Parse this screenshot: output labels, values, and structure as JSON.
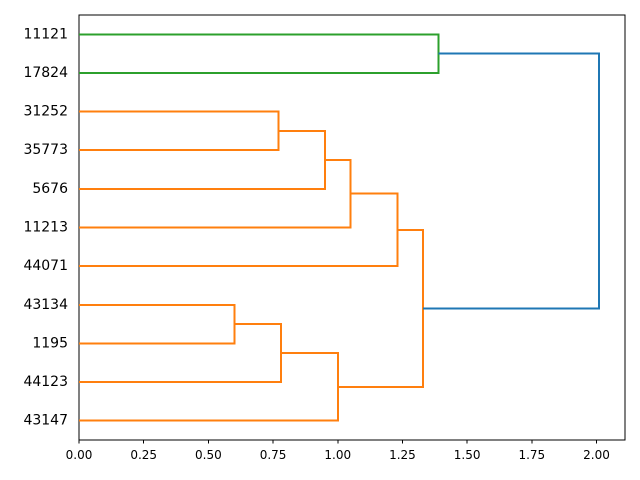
{
  "chart_data": {
    "type": "dendrogram",
    "orientation": "right",
    "title": "",
    "xlabel": "",
    "ylabel": "",
    "grid": false,
    "legend": "none",
    "leaves": [
      "11121",
      "17824",
      "31252",
      "35773",
      "5676",
      "11213",
      "44071",
      "43134",
      "1195",
      "44123",
      "43147"
    ],
    "links": [
      {
        "id": "n1",
        "children": [
          "31252",
          "35773"
        ],
        "distance": 0.77,
        "color": "orange"
      },
      {
        "id": "n2",
        "children": [
          "n1",
          "5676"
        ],
        "distance": 0.95,
        "color": "orange"
      },
      {
        "id": "n3",
        "children": [
          "n2",
          "11213"
        ],
        "distance": 1.05,
        "color": "orange"
      },
      {
        "id": "n4",
        "children": [
          "n3",
          "44071"
        ],
        "distance": 1.23,
        "color": "orange"
      },
      {
        "id": "n5",
        "children": [
          "43134",
          "1195"
        ],
        "distance": 0.6,
        "color": "orange"
      },
      {
        "id": "n6",
        "children": [
          "n5",
          "44123"
        ],
        "distance": 0.78,
        "color": "orange"
      },
      {
        "id": "n7",
        "children": [
          "n6",
          "43147"
        ],
        "distance": 1.0,
        "color": "orange"
      },
      {
        "id": "n8",
        "children": [
          "n4",
          "n7"
        ],
        "distance": 1.33,
        "color": "orange"
      },
      {
        "id": "n9",
        "children": [
          "11121",
          "17824"
        ],
        "distance": 1.39,
        "color": "green"
      },
      {
        "id": "n10",
        "children": [
          "n9",
          "n8"
        ],
        "distance": 2.01,
        "color": "blue"
      }
    ],
    "colors": {
      "green": "#2ca02c",
      "orange": "#ff7f0e",
      "blue": "#1f77b4",
      "frame": "#000000",
      "text": "#000000"
    },
    "x_axis": {
      "lim": [
        0,
        2.11
      ],
      "ticks": [
        0,
        0.25,
        0.5,
        0.75,
        1.0,
        1.25,
        1.5,
        1.75,
        2.0
      ],
      "tick_labels": [
        "0.00",
        "0.25",
        "0.50",
        "0.75",
        "1.00",
        "1.25",
        "1.50",
        "1.75",
        "2.00"
      ]
    }
  }
}
